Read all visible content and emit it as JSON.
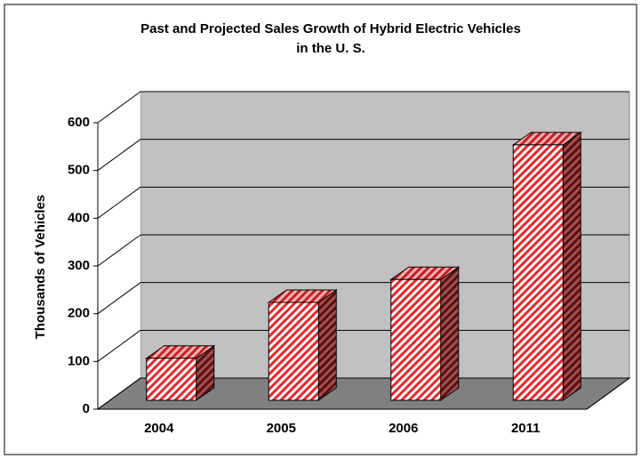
{
  "chart_data": {
    "type": "bar3d",
    "title": [
      "Past and Projected Sales Growth of Hybrid Electric Vehicles",
      "in the U. S."
    ],
    "y_label": "Thousands of Vehicles",
    "categories": [
      "2004",
      "2005",
      "2006",
      "2011"
    ],
    "values": [
      88,
      205,
      253,
      535
    ],
    "color": "#e8262a",
    "ylim": [
      0,
      600
    ],
    "yticks": [
      0,
      100,
      200,
      300,
      400,
      500,
      600
    ],
    "grid": true
  }
}
